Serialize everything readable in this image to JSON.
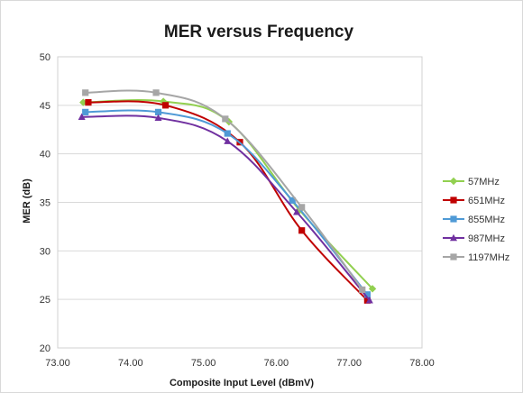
{
  "chart_data": {
    "type": "line",
    "title": "MER versus Frequency",
    "xlabel": "Composite Input Level (dBmV)",
    "ylabel": "MER (dB)",
    "xlim": [
      73.0,
      78.0
    ],
    "ylim": [
      20,
      50
    ],
    "x_ticks": [
      73.0,
      74.0,
      75.0,
      76.0,
      77.0,
      78.0
    ],
    "x_tick_labels": [
      "73.00",
      "74.00",
      "75.00",
      "76.00",
      "77.00",
      "78.00"
    ],
    "y_ticks": [
      20,
      25,
      30,
      35,
      40,
      45,
      50
    ],
    "y_tick_labels": [
      "20",
      "25",
      "30",
      "35",
      "40",
      "45",
      "50"
    ],
    "grid": "horizontal",
    "smoothed": true,
    "legend_position": "right",
    "series": [
      {
        "name": "57MHz",
        "color": "#92d050",
        "marker": "diamond",
        "x": [
          73.35,
          74.45,
          75.35,
          76.32,
          77.32
        ],
        "y": [
          45.3,
          45.4,
          43.3,
          34.2,
          26.1
        ]
      },
      {
        "name": "651MHz",
        "color": "#c00000",
        "marker": "square",
        "x": [
          73.42,
          74.48,
          75.5,
          76.35,
          77.25
        ],
        "y": [
          45.3,
          45.0,
          41.2,
          32.1,
          24.9
        ]
      },
      {
        "name": "855MHz",
        "color": "#4f9ad6",
        "marker": "square",
        "x": [
          73.38,
          74.38,
          75.33,
          76.22,
          77.25
        ],
        "y": [
          44.3,
          44.3,
          42.1,
          35.2,
          25.5
        ]
      },
      {
        "name": "987MHz",
        "color": "#7030a0",
        "marker": "triangle",
        "x": [
          73.33,
          74.38,
          75.33,
          76.28,
          77.28
        ],
        "y": [
          43.8,
          43.7,
          41.3,
          34.0,
          24.9
        ]
      },
      {
        "name": "1197MHz",
        "color": "#a6a6a6",
        "marker": "square",
        "x": [
          73.38,
          74.35,
          75.3,
          76.35,
          77.18
        ],
        "y": [
          46.3,
          46.3,
          43.6,
          34.5,
          26.0
        ]
      }
    ]
  }
}
